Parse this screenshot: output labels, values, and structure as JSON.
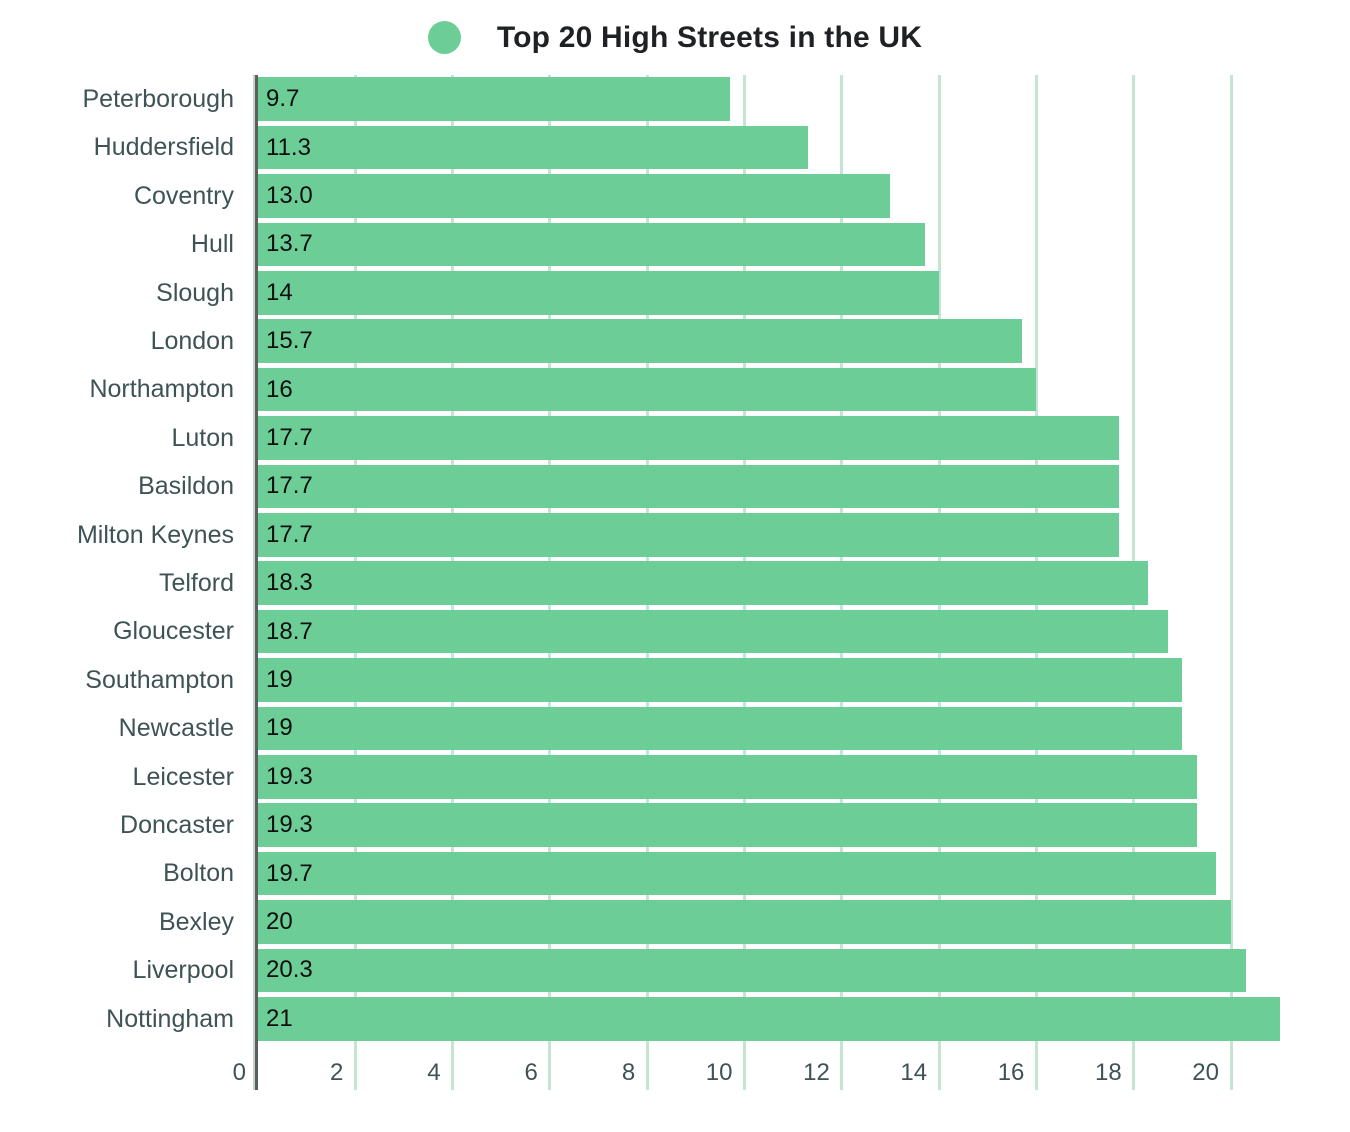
{
  "chart_data": {
    "type": "bar",
    "orientation": "horizontal",
    "title": "Top 20 High Streets in the UK",
    "legend_position": "top",
    "grid": "vertical",
    "categories": [
      "Peterborough",
      "Huddersfield",
      "Coventry",
      "Hull",
      "Slough",
      "London",
      "Northampton",
      "Luton",
      "Basildon",
      "Milton Keynes",
      "Telford",
      "Gloucester",
      "Southampton",
      "Newcastle",
      "Leicester",
      "Doncaster",
      "Bolton",
      "Bexley",
      "Liverpool",
      "Nottingham"
    ],
    "values": [
      9.7,
      11.3,
      13.0,
      13.7,
      14,
      15.7,
      16,
      17.7,
      17.7,
      17.7,
      18.3,
      18.7,
      19,
      19,
      19.3,
      19.3,
      19.7,
      20,
      20.3,
      21
    ],
    "value_labels": [
      "9.7",
      "11.3",
      "13.0",
      "13.7",
      "14",
      "15.7",
      "16",
      "17.7",
      "17.7",
      "17.7",
      "18.3",
      "18.7",
      "19",
      "19",
      "19.3",
      "19.3",
      "19.7",
      "20",
      "20.3",
      "21"
    ],
    "x_ticks": [
      0,
      2,
      4,
      6,
      8,
      10,
      12,
      14,
      16,
      18,
      20
    ],
    "x_tick_labels": [
      "0",
      "2",
      "4",
      "6",
      "8",
      "10",
      "12",
      "14",
      "16",
      "18",
      "20"
    ],
    "xlim": [
      0,
      22.4
    ],
    "colors": {
      "bar": "#6dcd97",
      "gridline": "#c4e5d1",
      "axis_line": "#57625b",
      "title": "#1f2124",
      "category_label": "#3f5355",
      "tick_label": "#3f5355",
      "value_label": "#0b0f0e",
      "background": "#ffffff"
    }
  }
}
